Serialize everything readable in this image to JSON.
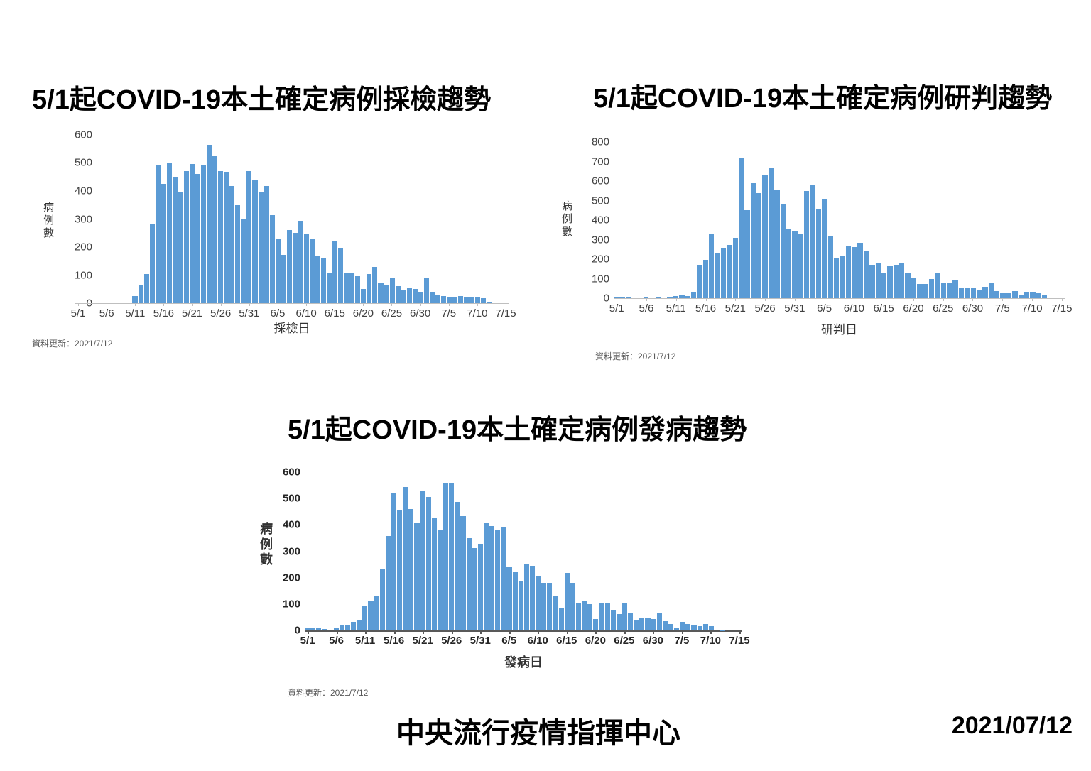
{
  "footer": {
    "org_name": "中央流行疫情指揮中心",
    "date": "2021/07/12"
  },
  "chart_data": [
    {
      "id": "sampling-trend",
      "type": "bar",
      "title": "5/1起COVID-19本土確定病例採檢趨勢",
      "ylabel": "病例數",
      "xlabel": "採檢日",
      "footnote": "資料更新：2021/7/12",
      "bar_color": "#5B9BD5",
      "ymax": 600,
      "ylim": [
        0,
        600
      ],
      "y_tick_labels": [
        "600",
        "500",
        "400",
        "300",
        "200",
        "100",
        "0"
      ],
      "x_tick_labels": [
        "5/1",
        "5/6",
        "5/11",
        "5/16",
        "5/21",
        "5/26",
        "5/31",
        "6/5",
        "6/10",
        "6/15",
        "6/20",
        "6/25",
        "6/30",
        "7/5",
        "7/10",
        "7/15"
      ],
      "x_tick_indices": [
        0,
        5,
        10,
        15,
        20,
        25,
        30,
        35,
        40,
        45,
        50,
        55,
        60,
        65,
        70,
        75
      ],
      "dates": [
        "5/1",
        "5/2",
        "5/3",
        "5/4",
        "5/5",
        "5/6",
        "5/7",
        "5/8",
        "5/9",
        "5/10",
        "5/11",
        "5/12",
        "5/13",
        "5/14",
        "5/15",
        "5/16",
        "5/17",
        "5/18",
        "5/19",
        "5/20",
        "5/21",
        "5/22",
        "5/23",
        "5/24",
        "5/25",
        "5/26",
        "5/27",
        "5/28",
        "5/29",
        "5/30",
        "5/31",
        "6/1",
        "6/2",
        "6/3",
        "6/4",
        "6/5",
        "6/6",
        "6/7",
        "6/8",
        "6/9",
        "6/10",
        "6/11",
        "6/12",
        "6/13",
        "6/14",
        "6/15",
        "6/16",
        "6/17",
        "6/18",
        "6/19",
        "6/20",
        "6/21",
        "6/22",
        "6/23",
        "6/24",
        "6/25",
        "6/26",
        "6/27",
        "6/28",
        "6/29",
        "6/30",
        "7/1",
        "7/2",
        "7/3",
        "7/4",
        "7/5",
        "7/6",
        "7/7",
        "7/8",
        "7/9",
        "7/10",
        "7/11",
        "7/12",
        "7/13",
        "7/14",
        "7/15"
      ],
      "values": [
        0,
        0,
        0,
        0,
        0,
        0,
        0,
        0,
        0,
        0,
        25,
        65,
        105,
        280,
        490,
        425,
        500,
        447,
        395,
        470,
        495,
        460,
        490,
        565,
        525,
        472,
        468,
        418,
        350,
        302,
        470,
        437,
        398,
        417,
        315,
        230,
        172,
        262,
        250,
        293,
        247,
        230,
        166,
        162,
        109,
        223,
        194,
        109,
        106,
        95,
        51,
        104,
        130,
        70,
        65,
        92,
        62,
        45,
        54,
        51,
        39,
        90,
        37,
        30,
        26,
        24,
        24,
        26,
        24,
        20,
        22,
        17,
        5,
        0,
        0,
        0
      ]
    },
    {
      "id": "judgment-trend",
      "type": "bar",
      "title": "5/1起COVID-19本土確定病例研判趨勢",
      "ylabel": "病例數",
      "xlabel": "研判日",
      "footnote": "資料更新：2021/7/12",
      "bar_color": "#5B9BD5",
      "ymax": 800,
      "ylim": [
        0,
        800
      ],
      "y_tick_labels": [
        "800",
        "700",
        "600",
        "500",
        "400",
        "300",
        "200",
        "100",
        "0"
      ],
      "x_tick_labels": [
        "5/1",
        "5/6",
        "5/11",
        "5/16",
        "5/21",
        "5/26",
        "5/31",
        "6/5",
        "6/10",
        "6/15",
        "6/20",
        "6/25",
        "6/30",
        "7/5",
        "7/10",
        "7/15"
      ],
      "x_tick_indices": [
        0,
        5,
        10,
        15,
        20,
        25,
        30,
        35,
        40,
        45,
        50,
        55,
        60,
        65,
        70,
        75
      ],
      "dates": [
        "5/1",
        "5/2",
        "5/3",
        "5/4",
        "5/5",
        "5/6",
        "5/7",
        "5/8",
        "5/9",
        "5/10",
        "5/11",
        "5/12",
        "5/13",
        "5/14",
        "5/15",
        "5/16",
        "5/17",
        "5/18",
        "5/19",
        "5/20",
        "5/21",
        "5/22",
        "5/23",
        "5/24",
        "5/25",
        "5/26",
        "5/27",
        "5/28",
        "5/29",
        "5/30",
        "5/31",
        "6/1",
        "6/2",
        "6/3",
        "6/4",
        "6/5",
        "6/6",
        "6/7",
        "6/8",
        "6/9",
        "6/10",
        "6/11",
        "6/12",
        "6/13",
        "6/14",
        "6/15",
        "6/16",
        "6/17",
        "6/18",
        "6/19",
        "6/20",
        "6/21",
        "6/22",
        "6/23",
        "6/24",
        "6/25",
        "6/26",
        "6/27",
        "6/28",
        "6/29",
        "6/30",
        "7/1",
        "7/2",
        "7/3",
        "7/4",
        "7/5",
        "7/6",
        "7/7",
        "7/8",
        "7/9",
        "7/10",
        "7/11",
        "7/12",
        "7/13",
        "7/14",
        "7/15"
      ],
      "values": [
        5,
        4,
        4,
        0,
        0,
        6,
        0,
        5,
        0,
        6,
        10,
        16,
        12,
        30,
        170,
        198,
        327,
        231,
        257,
        272,
        310,
        720,
        450,
        590,
        540,
        630,
        665,
        555,
        485,
        355,
        347,
        330,
        550,
        578,
        457,
        510,
        321,
        206,
        214,
        270,
        263,
        284,
        242,
        170,
        182,
        128,
        164,
        170,
        183,
        126,
        104,
        72,
        72,
        98,
        132,
        78,
        78,
        93,
        56,
        54,
        56,
        42,
        60,
        75,
        38,
        24,
        26,
        38,
        20,
        32,
        32,
        26,
        20,
        0,
        0,
        0
      ]
    },
    {
      "id": "onset-trend",
      "type": "bar",
      "title": "5/1起COVID-19本土確定病例發病趨勢",
      "ylabel": "病例數",
      "xlabel": "發病日",
      "footnote": "資料更新：2021/7/12",
      "bar_color": "#5B9BD5",
      "ymax": 600,
      "ylim": [
        0,
        600
      ],
      "y_tick_labels": [
        "600",
        "500",
        "400",
        "300",
        "200",
        "100",
        "0"
      ],
      "x_tick_labels": [
        "5/1",
        "5/6",
        "5/11",
        "5/16",
        "5/21",
        "5/26",
        "5/31",
        "6/5",
        "6/10",
        "6/15",
        "6/20",
        "6/25",
        "6/30",
        "7/5",
        "7/10",
        "7/15"
      ],
      "x_tick_indices": [
        0,
        5,
        10,
        15,
        20,
        25,
        30,
        35,
        40,
        45,
        50,
        55,
        60,
        65,
        70,
        75
      ],
      "dates": [
        "5/1",
        "5/2",
        "5/3",
        "5/4",
        "5/5",
        "5/6",
        "5/7",
        "5/8",
        "5/9",
        "5/10",
        "5/11",
        "5/12",
        "5/13",
        "5/14",
        "5/15",
        "5/16",
        "5/17",
        "5/18",
        "5/19",
        "5/20",
        "5/21",
        "5/22",
        "5/23",
        "5/24",
        "5/25",
        "5/26",
        "5/27",
        "5/28",
        "5/29",
        "5/30",
        "5/31",
        "6/1",
        "6/2",
        "6/3",
        "6/4",
        "6/5",
        "6/6",
        "6/7",
        "6/8",
        "6/9",
        "6/10",
        "6/11",
        "6/12",
        "6/13",
        "6/14",
        "6/15",
        "6/16",
        "6/17",
        "6/18",
        "6/19",
        "6/20",
        "6/21",
        "6/22",
        "6/23",
        "6/24",
        "6/25",
        "6/26",
        "6/27",
        "6/28",
        "6/29",
        "6/30",
        "7/1",
        "7/2",
        "7/3",
        "7/4",
        "7/5",
        "7/6",
        "7/7",
        "7/8",
        "7/9",
        "7/10",
        "7/11",
        "7/12",
        "7/13",
        "7/14",
        "7/15"
      ],
      "values": [
        12,
        7,
        9,
        5,
        3,
        7,
        18,
        19,
        32,
        41,
        91,
        113,
        133,
        234,
        357,
        518,
        455,
        543,
        459,
        408,
        527,
        505,
        428,
        379,
        561,
        561,
        486,
        433,
        349,
        312,
        329,
        408,
        396,
        379,
        393,
        243,
        222,
        189,
        250,
        246,
        207,
        181,
        181,
        133,
        84,
        219,
        181,
        102,
        113,
        99,
        43,
        102,
        106,
        77,
        61,
        102,
        64,
        41,
        45,
        45,
        43,
        68,
        34,
        23,
        9,
        32,
        25,
        21,
        16,
        23,
        16,
        3,
        1,
        0,
        0,
        0
      ]
    }
  ]
}
